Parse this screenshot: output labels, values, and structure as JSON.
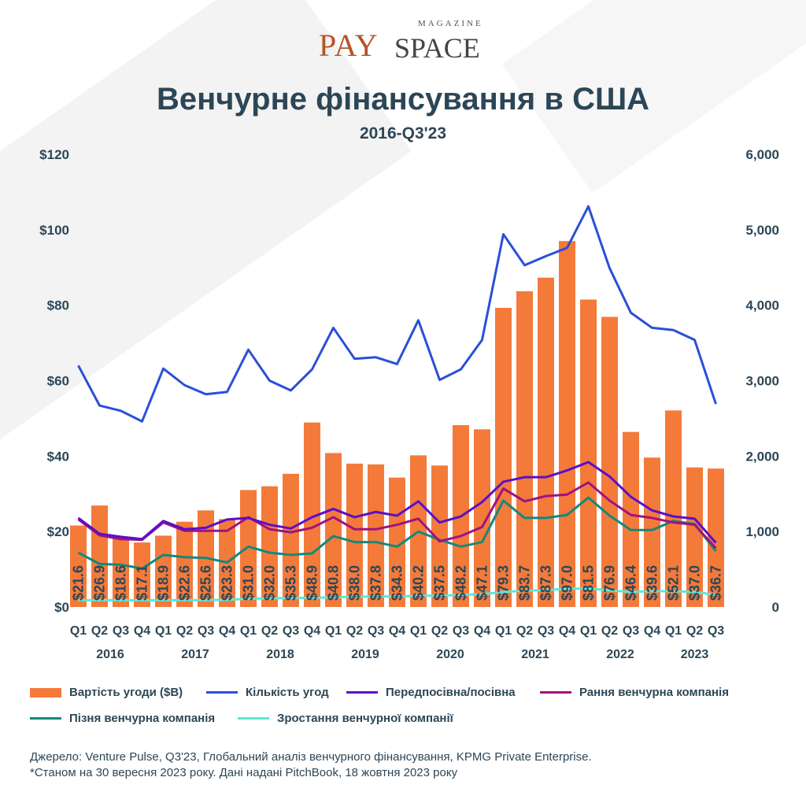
{
  "logo": {
    "text_main": "PAYSPACE",
    "text_top": "MAGAZINE"
  },
  "title": "Венчурне фінансування в США",
  "subtitle": "2016-Q3'23",
  "colors": {
    "bar": "#f47a3a",
    "deal_count": "#2a4fd8",
    "pre_seed": "#5a0fc8",
    "early": "#a0137e",
    "late": "#15887a",
    "growth": "#5ee6d6",
    "text": "#2d4656"
  },
  "chart_data": {
    "type": "bar+line",
    "title": "Венчурне фінансування в США",
    "subtitle": "2016-Q3'23",
    "quarters": [
      "Q1",
      "Q2",
      "Q3",
      "Q4",
      "Q1",
      "Q2",
      "Q3",
      "Q4",
      "Q1",
      "Q2",
      "Q3",
      "Q4",
      "Q1",
      "Q2",
      "Q3",
      "Q4",
      "Q1",
      "Q2",
      "Q3",
      "Q4",
      "Q1",
      "Q2",
      "Q3",
      "Q4",
      "Q1",
      "Q2",
      "Q3",
      "Q4",
      "Q1",
      "Q2",
      "Q3"
    ],
    "years": [
      "2016",
      "2017",
      "2018",
      "2019",
      "2020",
      "2021",
      "2022",
      "2023"
    ],
    "left_axis": {
      "ylim": [
        0,
        120
      ],
      "ticks": [
        "$0",
        "$20",
        "$40",
        "$60",
        "$80",
        "$100",
        "$120"
      ]
    },
    "right_axis": {
      "ylim": [
        0,
        6000
      ],
      "ticks": [
        "0",
        "1,000",
        "2,000",
        "3,000",
        "4,000",
        "5,000",
        "6,000"
      ]
    },
    "bars": {
      "name": "Вартість угоди ($B)",
      "axis": "left",
      "values": [
        21.6,
        26.9,
        18.6,
        17.1,
        18.9,
        22.6,
        25.6,
        23.3,
        31.0,
        32.0,
        35.3,
        48.9,
        40.8,
        38.0,
        37.8,
        34.3,
        40.2,
        37.5,
        48.2,
        47.1,
        79.3,
        83.7,
        87.3,
        97.0,
        81.5,
        76.9,
        46.4,
        39.6,
        52.1,
        37.0,
        36.7
      ],
      "labels": [
        "$21.6",
        "$26.9",
        "$18.6",
        "$17.1",
        "$18.9",
        "$22.6",
        "$25.6",
        "$23.3",
        "$31.0",
        "$32.0",
        "$35.3",
        "$48.9",
        "$40.8",
        "$38.0",
        "$37.8",
        "$34.3",
        "$40.2",
        "$37.5",
        "$48.2",
        "$47.1",
        "$79.3",
        "$83.7",
        "$87.3",
        "$97.0",
        "$81.5",
        "$76.9",
        "$46.4",
        "$39.6",
        "$52.1",
        "$37.0",
        "$36.7"
      ]
    },
    "series": [
      {
        "name": "Кількість угод",
        "axis": "right",
        "color": "#2a4fd8",
        "values": [
          3200,
          2670,
          2600,
          2460,
          3160,
          2940,
          2820,
          2850,
          3410,
          3000,
          2870,
          3150,
          3700,
          3290,
          3310,
          3220,
          3800,
          3010,
          3150,
          3540,
          4940,
          4530,
          4650,
          4760,
          5310,
          4490,
          3900,
          3700,
          3670,
          3540,
          2690
        ]
      },
      {
        "name": "Передпосівна/посівна",
        "axis": "right",
        "color": "#5a0fc8",
        "values": [
          1180,
          970,
          930,
          900,
          1140,
          1030,
          1050,
          1160,
          1180,
          1090,
          1040,
          1190,
          1300,
          1190,
          1260,
          1210,
          1400,
          1120,
          1200,
          1390,
          1660,
          1720,
          1720,
          1810,
          1920,
          1730,
          1460,
          1280,
          1200,
          1170,
          850
        ]
      },
      {
        "name": "Рання венчурна компанія",
        "axis": "right",
        "color": "#a0137e",
        "values": [
          1160,
          950,
          900,
          890,
          1120,
          1010,
          1010,
          1010,
          1190,
          1030,
          990,
          1050,
          1190,
          1030,
          1030,
          1090,
          1170,
          870,
          940,
          1060,
          1570,
          1400,
          1470,
          1490,
          1650,
          1410,
          1220,
          1180,
          1120,
          1090,
          780
        ]
      },
      {
        "name": "Пізня венчурна компанія",
        "axis": "right",
        "color": "#15887a",
        "values": [
          720,
          570,
          560,
          510,
          690,
          660,
          650,
          590,
          800,
          720,
          690,
          710,
          940,
          860,
          860,
          800,
          1000,
          890,
          800,
          860,
          1410,
          1180,
          1180,
          1220,
          1450,
          1210,
          1020,
          1020,
          1140,
          1100,
          740
        ]
      },
      {
        "name": "Зростання венчурної компанії",
        "axis": "right",
        "color": "#5ee6d6",
        "values": [
          90,
          90,
          90,
          90,
          90,
          90,
          90,
          95,
          110,
          115,
          120,
          120,
          130,
          135,
          140,
          140,
          150,
          150,
          160,
          170,
          200,
          215,
          225,
          240,
          245,
          220,
          200,
          210,
          210,
          200,
          160
        ]
      }
    ],
    "legend_position": "bottom",
    "grid": false
  },
  "source": {
    "line1": "Джерело: Venture Pulse, Q3'23, Глобальний аналіз венчурного фінансування, KPMG Private Enterprise.",
    "line2": "*Станом на 30 вересня 2023 року. Дані надані PitchBook, 18 жовтня 2023 року"
  }
}
